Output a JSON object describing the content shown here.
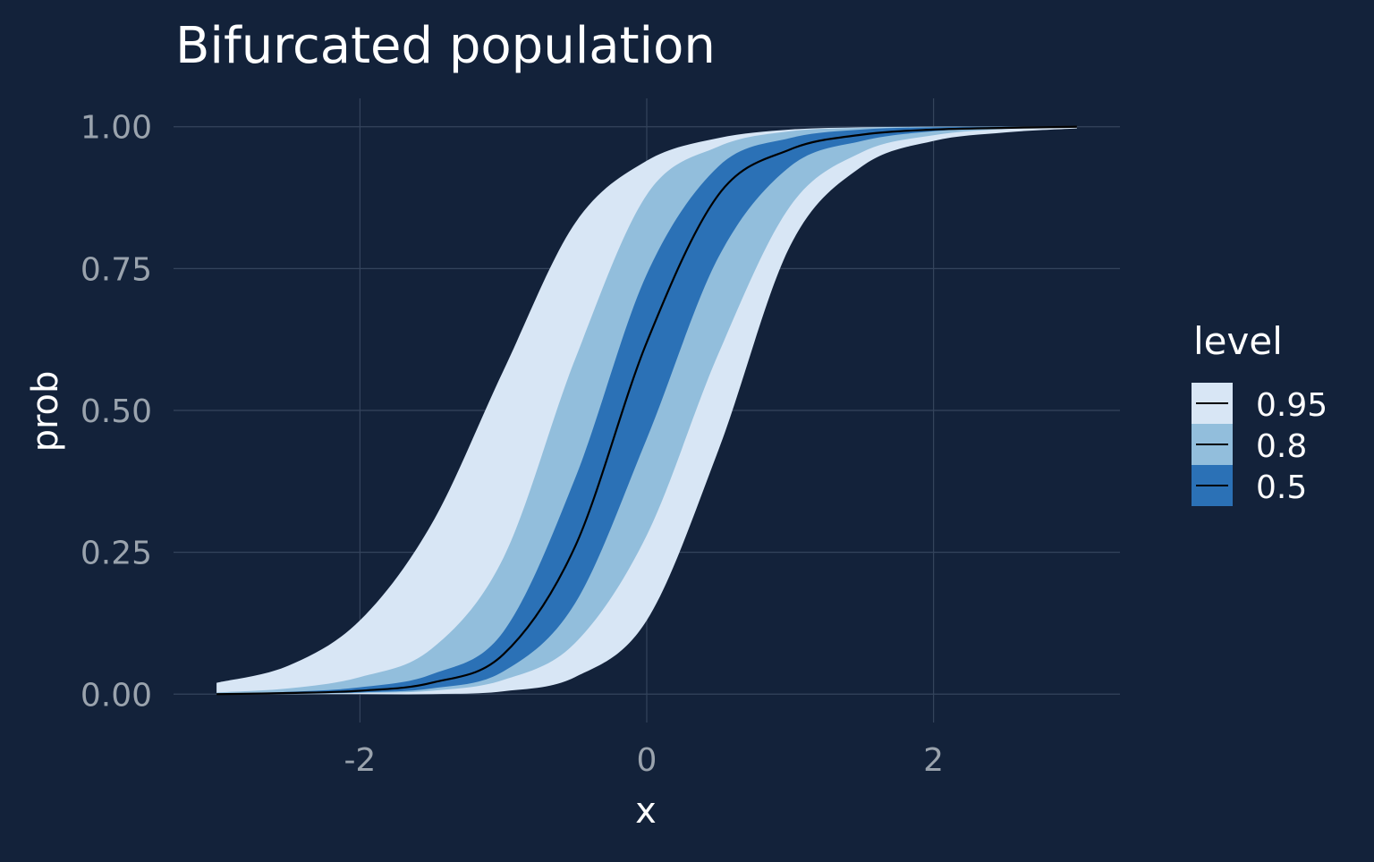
{
  "chart_data": {
    "type": "area",
    "title": "Bifurcated population",
    "xlabel": "x",
    "ylabel": "prob",
    "xlim": [
      -3.3,
      3.3
    ],
    "ylim": [
      -0.05,
      1.05
    ],
    "x_ticks": [
      -2,
      0,
      2
    ],
    "x_tick_labels": [
      "-2",
      "0",
      "2"
    ],
    "y_ticks": [
      0,
      0.25,
      0.5,
      0.75,
      1.0
    ],
    "y_tick_labels": [
      "0.00",
      "0.25",
      "0.50",
      "0.75",
      "1.00"
    ],
    "grid": true,
    "legend": {
      "title": "level",
      "placement": "right",
      "entries": [
        "0.95",
        "0.8",
        "0.5"
      ]
    },
    "bands": [
      {
        "level": "0.95",
        "color": "#d8e6f5",
        "x": [
          -3.0,
          -2.5,
          -2.0,
          -1.5,
          -1.0,
          -0.5,
          0.0,
          0.5,
          1.0,
          1.5,
          2.0,
          2.5,
          3.0
        ],
        "lower": [
          0.0,
          0.0,
          0.0,
          0.0,
          0.005,
          0.03,
          0.13,
          0.43,
          0.79,
          0.93,
          0.975,
          0.99,
          0.997
        ],
        "upper": [
          0.02,
          0.05,
          0.13,
          0.3,
          0.57,
          0.83,
          0.94,
          0.98,
          0.995,
          0.999,
          1.0,
          1.0,
          1.0
        ]
      },
      {
        "level": "0.8",
        "color": "#92bedc",
        "x": [
          -3.0,
          -2.5,
          -2.0,
          -1.5,
          -1.0,
          -0.5,
          0.0,
          0.5,
          1.0,
          1.5,
          2.0,
          2.5,
          3.0
        ],
        "lower": [
          0.0,
          0.0,
          0.002,
          0.006,
          0.025,
          0.09,
          0.28,
          0.6,
          0.86,
          0.955,
          0.985,
          0.996,
          0.999
        ],
        "upper": [
          0.003,
          0.01,
          0.03,
          0.08,
          0.24,
          0.59,
          0.88,
          0.965,
          0.992,
          0.998,
          1.0,
          1.0,
          1.0
        ]
      },
      {
        "level": "0.5",
        "color": "#2b71b6",
        "x": [
          -3.0,
          -2.5,
          -2.0,
          -1.5,
          -1.0,
          -0.5,
          0.0,
          0.5,
          1.0,
          1.5,
          2.0,
          2.5,
          3.0
        ],
        "lower": [
          0.0,
          0.001,
          0.003,
          0.01,
          0.04,
          0.16,
          0.45,
          0.77,
          0.93,
          0.975,
          0.992,
          0.998,
          1.0
        ],
        "upper": [
          0.001,
          0.004,
          0.012,
          0.035,
          0.11,
          0.38,
          0.74,
          0.93,
          0.98,
          0.995,
          0.999,
          1.0,
          1.0
        ]
      }
    ],
    "median": {
      "color": "#000000",
      "x": [
        -3.0,
        -2.5,
        -2.0,
        -1.5,
        -1.0,
        -0.5,
        0.0,
        0.5,
        1.0,
        1.5,
        2.0,
        2.5,
        3.0
      ],
      "y": [
        0.0,
        0.002,
        0.006,
        0.02,
        0.07,
        0.26,
        0.62,
        0.88,
        0.96,
        0.986,
        0.995,
        0.998,
        1.0
      ]
    }
  },
  "colors": {
    "background": "#13223a",
    "grid": "#34445c",
    "tick_text": "#9aa3ad",
    "label_text": "#ffffff"
  }
}
